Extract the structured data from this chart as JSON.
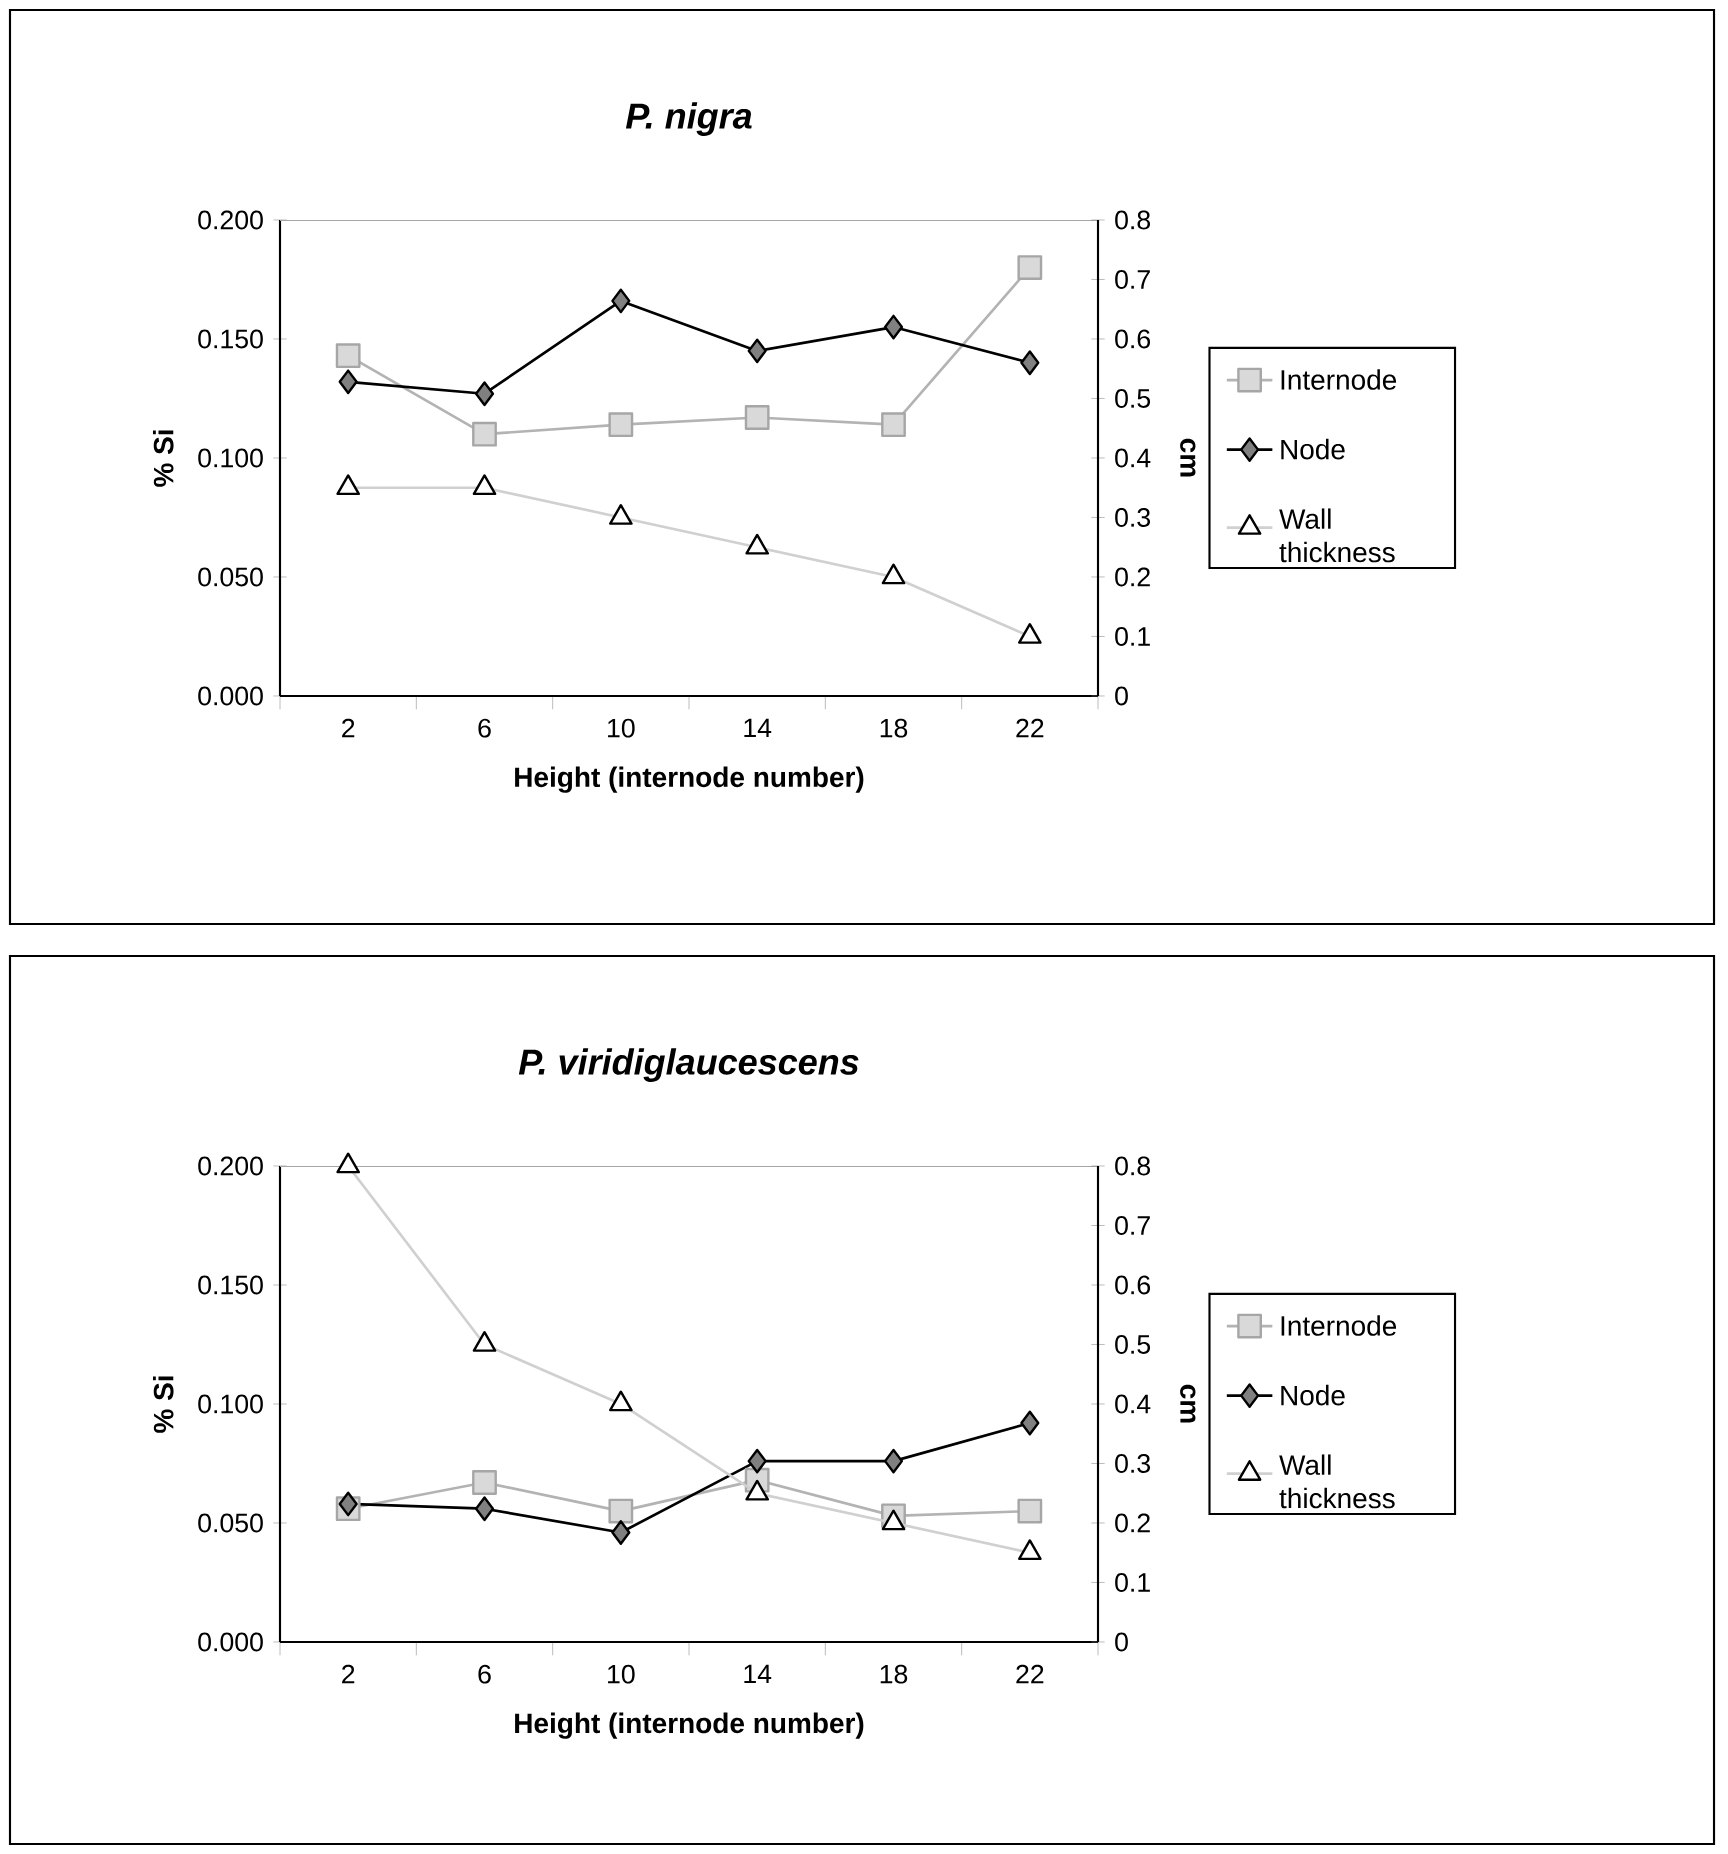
{
  "chart_data": [
    {
      "type": "line",
      "title": "P. nigra",
      "xlabel": "Height (internode number)",
      "ylabel": "% Si",
      "y2label": "cm",
      "categories": [
        "2",
        "6",
        "10",
        "14",
        "18",
        "22"
      ],
      "series": [
        {
          "name": "Internode",
          "color": "#b3b3b3",
          "marker": "square",
          "values": [
            0.143,
            0.11,
            0.114,
            0.117,
            0.114,
            0.18
          ]
        },
        {
          "name": "Node",
          "color": "#000000",
          "marker": "diamond",
          "values": [
            0.132,
            0.127,
            0.166,
            0.145,
            0.155,
            0.14
          ]
        },
        {
          "name": "Wall thickness",
          "color": "#d0d0d0",
          "marker": "triangle",
          "axis": "y2",
          "values": [
            0.35,
            0.35,
            0.3,
            0.25,
            0.2,
            0.1
          ]
        }
      ],
      "ylim": [
        0,
        0.2
      ],
      "yticks": [
        {
          "value": 0,
          "label": "0.000"
        },
        {
          "value": 0.05,
          "label": "0.050"
        },
        {
          "value": 0.1,
          "label": "0.100"
        },
        {
          "value": 0.15,
          "label": "0.150"
        },
        {
          "value": 0.2,
          "label": "0.200"
        }
      ],
      "y2lim": [
        0,
        0.8
      ],
      "y2ticks": [
        0,
        0.1,
        0.2,
        0.3,
        0.4,
        0.5,
        0.6,
        0.7,
        0.8
      ],
      "legend": "right",
      "grid": false
    },
    {
      "type": "line",
      "title": "P. viridiglaucescens",
      "xlabel": "Height (internode number)",
      "ylabel": "% Si",
      "y2label": "cm",
      "categories": [
        "2",
        "6",
        "10",
        "14",
        "18",
        "22"
      ],
      "series": [
        {
          "name": "Internode",
          "color": "#b3b3b3",
          "marker": "square",
          "values": [
            0.056,
            0.067,
            0.055,
            0.068,
            0.053,
            0.055
          ]
        },
        {
          "name": "Node",
          "color": "#000000",
          "marker": "diamond",
          "values": [
            0.058,
            0.056,
            0.046,
            0.076,
            0.076,
            0.092
          ]
        },
        {
          "name": "Wall thickness",
          "color": "#d0d0d0",
          "marker": "triangle",
          "axis": "y2",
          "values": [
            0.8,
            0.5,
            0.4,
            0.25,
            0.2,
            0.15
          ]
        }
      ],
      "ylim": [
        0,
        0.2
      ],
      "yticks": [
        {
          "value": 0,
          "label": "0.000"
        },
        {
          "value": 0.05,
          "label": "0.050"
        },
        {
          "value": 0.1,
          "label": "0.100"
        },
        {
          "value": 0.15,
          "label": "0.150"
        },
        {
          "value": 0.2,
          "label": "0.200"
        }
      ],
      "y2lim": [
        0,
        0.8
      ],
      "y2ticks": [
        0,
        0.1,
        0.2,
        0.3,
        0.4,
        0.5,
        0.6,
        0.7,
        0.8
      ],
      "legend": "right",
      "grid": false
    }
  ]
}
